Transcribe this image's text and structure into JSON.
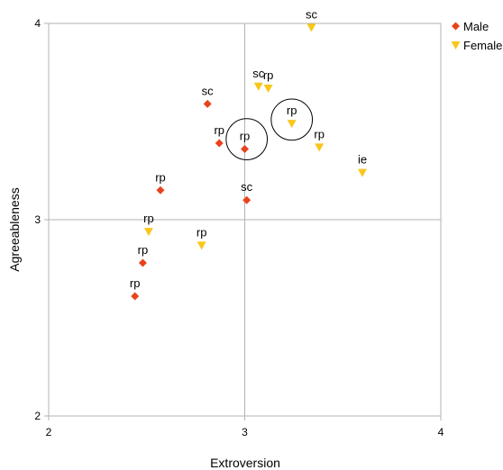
{
  "chart_data": {
    "type": "scatter",
    "title": "",
    "xlabel": "Extroversion",
    "ylabel": "Agreeableness",
    "xlim": [
      2,
      4
    ],
    "ylim": [
      2,
      4
    ],
    "xticks": [
      "2",
      "3",
      "4"
    ],
    "yticks": [
      "2",
      "3",
      "4"
    ],
    "grid": "major lines at 3",
    "legend": "right",
    "series": [
      {
        "name": "Male",
        "marker": "diamond",
        "color": "#E8431C",
        "points": [
          {
            "x": 2.81,
            "y": 3.59,
            "label": "sc"
          },
          {
            "x": 2.87,
            "y": 3.39,
            "label": "rp"
          },
          {
            "x": 3.0,
            "y": 3.36,
            "label": "rp"
          },
          {
            "x": 2.57,
            "y": 3.15,
            "label": "rp"
          },
          {
            "x": 3.01,
            "y": 3.1,
            "label": "sc"
          },
          {
            "x": 2.48,
            "y": 2.78,
            "label": "rp"
          },
          {
            "x": 2.44,
            "y": 2.61,
            "label": "rp"
          }
        ]
      },
      {
        "name": "Female",
        "marker": "triangle-down",
        "color": "#F9C61A",
        "points": [
          {
            "x": 3.34,
            "y": 3.98,
            "label": "sc"
          },
          {
            "x": 3.07,
            "y": 3.68,
            "label": "sc"
          },
          {
            "x": 3.12,
            "y": 3.67,
            "label": "rp"
          },
          {
            "x": 3.24,
            "y": 3.49,
            "label": "rp"
          },
          {
            "x": 3.38,
            "y": 3.37,
            "label": "rp"
          },
          {
            "x": 3.6,
            "y": 3.24,
            "label": "ie"
          },
          {
            "x": 2.51,
            "y": 2.94,
            "label": "rp"
          },
          {
            "x": 2.78,
            "y": 2.87,
            "label": "rp"
          }
        ]
      }
    ],
    "highlight_circles": [
      {
        "x": 3.01,
        "y": 3.41,
        "r_units": 0.105
      },
      {
        "x": 3.24,
        "y": 3.51,
        "r_units": 0.105
      }
    ]
  }
}
